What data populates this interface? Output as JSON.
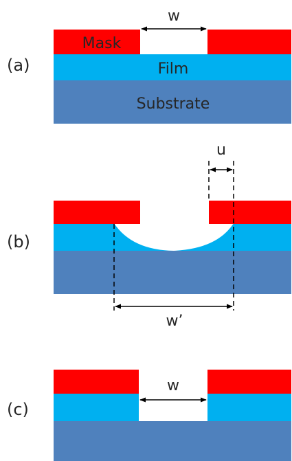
{
  "panels": {
    "a": {
      "label": "(a)",
      "mask_label": "Mask",
      "film_label": "Film",
      "substrate_label": "Substrate",
      "width_label": "w"
    },
    "b": {
      "label": "(b)",
      "undercut_label": "u",
      "etched_width_label": "w’"
    },
    "c": {
      "label": "(c)",
      "width_label": "w"
    }
  },
  "colors": {
    "mask": "#ff0000",
    "film": "#00b0f0",
    "substrate": "#4f81bd",
    "background": "#ffffff",
    "annotation": "#000000"
  }
}
